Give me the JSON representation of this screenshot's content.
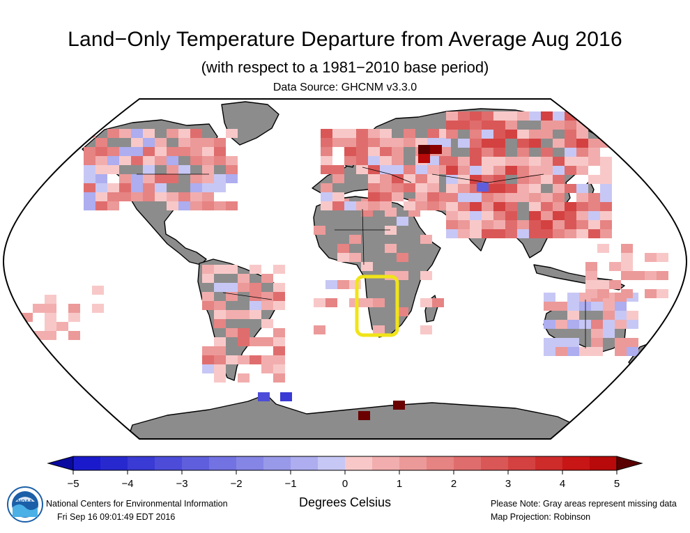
{
  "header": {
    "title": "Land−Only Temperature Departure from Average Aug 2016",
    "subtitle": "(with respect to a 1981−2010 base period)",
    "data_source": "Data Source: GHCNM v3.3.0"
  },
  "map": {
    "projection": "Robinson",
    "highlight_region": "Southern Africa (Namibia / Botswana)",
    "highlight_color": "#f0e41a",
    "missing_color": "#8c8c8c",
    "ocean_color": "#ffffff"
  },
  "legend": {
    "ticks": [
      "−5",
      "−4",
      "−3",
      "−2",
      "−1",
      "0",
      "1",
      "2",
      "3",
      "4",
      "5"
    ],
    "tick_values": [
      -5,
      -4,
      -3,
      -2,
      -1,
      0,
      1,
      2,
      3,
      4,
      5
    ],
    "units": "Degrees Celsius",
    "bins": [
      {
        "min": -5.0,
        "max": -4.5,
        "color": "#1a1acc"
      },
      {
        "min": -4.5,
        "max": -4.0,
        "color": "#2828cf"
      },
      {
        "min": -4.0,
        "max": -3.5,
        "color": "#3a3ad4"
      },
      {
        "min": -3.5,
        "max": -3.0,
        "color": "#4c4cd9"
      },
      {
        "min": -3.0,
        "max": -2.5,
        "color": "#5f5fdd"
      },
      {
        "min": -2.5,
        "max": -2.0,
        "color": "#7272e2"
      },
      {
        "min": -2.0,
        "max": -1.5,
        "color": "#8585e6"
      },
      {
        "min": -1.5,
        "max": -1.0,
        "color": "#9999ea"
      },
      {
        "min": -1.0,
        "max": -0.5,
        "color": "#adadef"
      },
      {
        "min": -0.5,
        "max": 0.0,
        "color": "#c7c7f5"
      },
      {
        "min": 0.0,
        "max": 0.5,
        "color": "#f8c8c8"
      },
      {
        "min": 0.5,
        "max": 1.0,
        "color": "#f2aeae"
      },
      {
        "min": 1.0,
        "max": 1.5,
        "color": "#ec9999"
      },
      {
        "min": 1.5,
        "max": 2.0,
        "color": "#e68383"
      },
      {
        "min": 2.0,
        "max": 2.5,
        "color": "#e06d6d"
      },
      {
        "min": 2.5,
        "max": 3.0,
        "color": "#da5757"
      },
      {
        "min": 3.0,
        "max": 3.5,
        "color": "#d44141"
      },
      {
        "min": 3.5,
        "max": 4.0,
        "color": "#ce2b2b"
      },
      {
        "min": 4.0,
        "max": 4.5,
        "color": "#c81515"
      },
      {
        "min": 4.5,
        "max": 5.0,
        "color": "#b80a0a"
      }
    ],
    "under_color": "#0a0aa0",
    "over_color": "#5a0000"
  },
  "footer": {
    "agency": "National Centers for Environmental Information",
    "timestamp": "Fri Sep 16 09:01:49 EDT 2016",
    "note": "Please Note: Gray areas represent missing data",
    "projection_note": "Map Projection: Robinson",
    "logo_text": "NOAA"
  }
}
